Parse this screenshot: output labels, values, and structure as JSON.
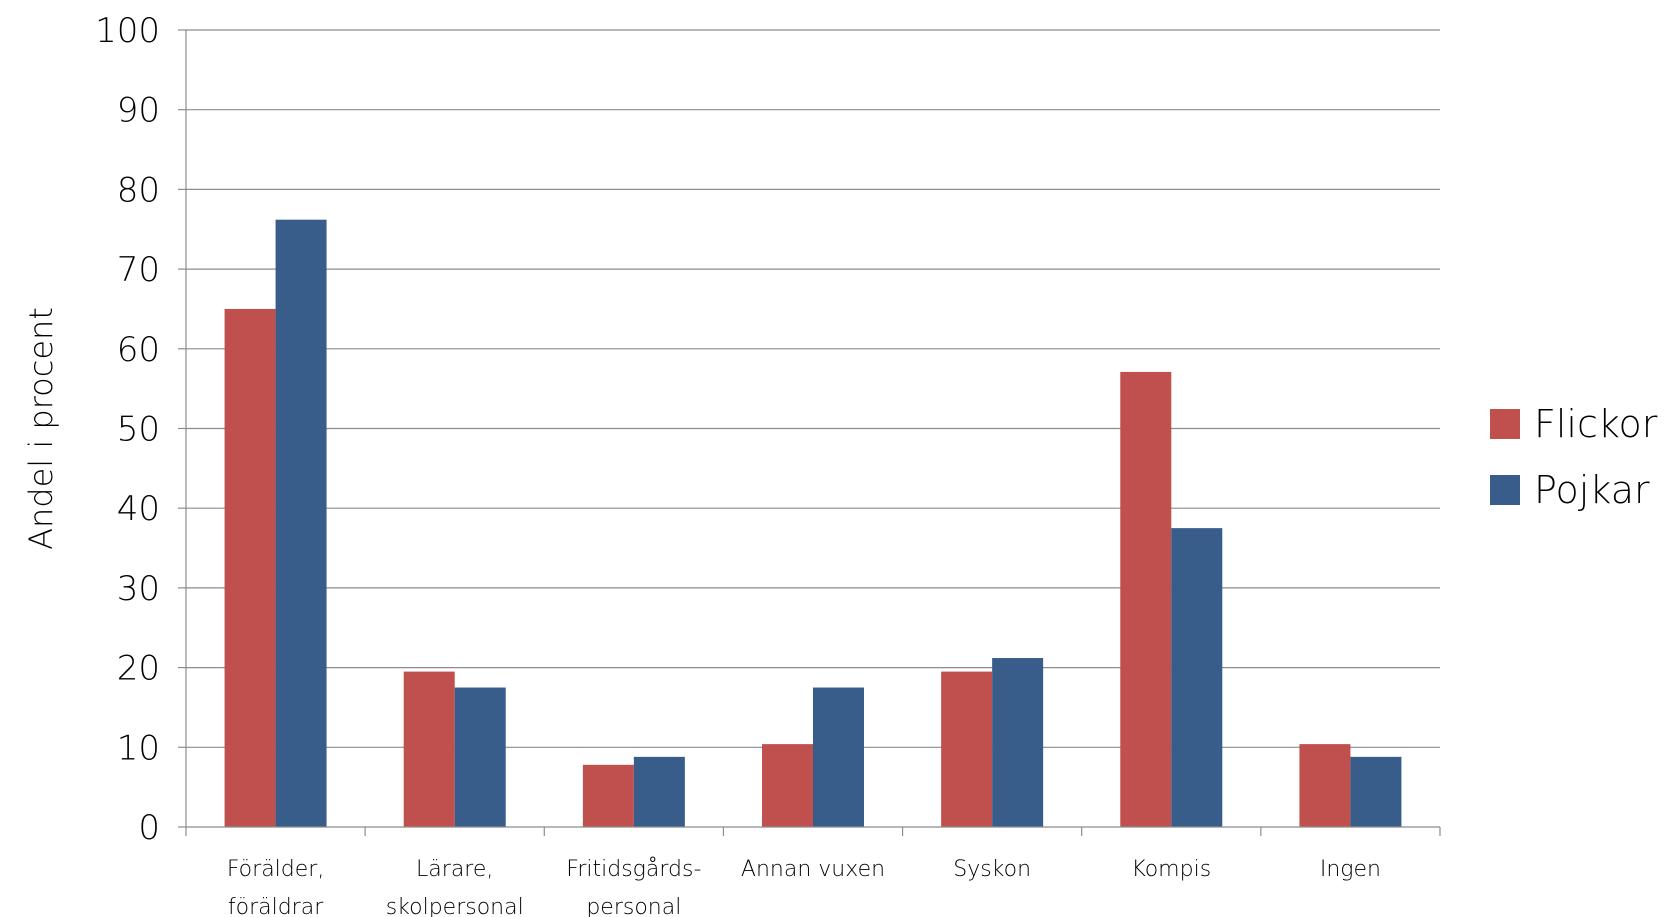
{
  "chart_data": {
    "type": "bar",
    "categories": [
      [
        "Förälder,",
        "föräldrar"
      ],
      [
        "Lärare,",
        "skolpersonal"
      ],
      [
        "Fritidsgårds-",
        "personal"
      ],
      [
        "Annan vuxen"
      ],
      [
        "Syskon"
      ],
      [
        "Kompis"
      ],
      [
        "Ingen"
      ]
    ],
    "series": [
      {
        "name": "Flickor",
        "color": "#c0504d",
        "values": [
          65,
          19.5,
          7.8,
          10.4,
          19.5,
          57.1,
          10.4
        ]
      },
      {
        "name": "Pojkar",
        "color": "#385d8a",
        "values": [
          76.2,
          17.5,
          8.8,
          17.5,
          21.2,
          37.5,
          8.8
        ]
      }
    ],
    "title": "",
    "xlabel": "",
    "ylabel": "Andel i procent",
    "ylim": [
      0,
      100
    ],
    "yticks": [
      0,
      10,
      20,
      30,
      40,
      50,
      60,
      70,
      80,
      90,
      100
    ],
    "grid": true,
    "legend_position": "right"
  }
}
